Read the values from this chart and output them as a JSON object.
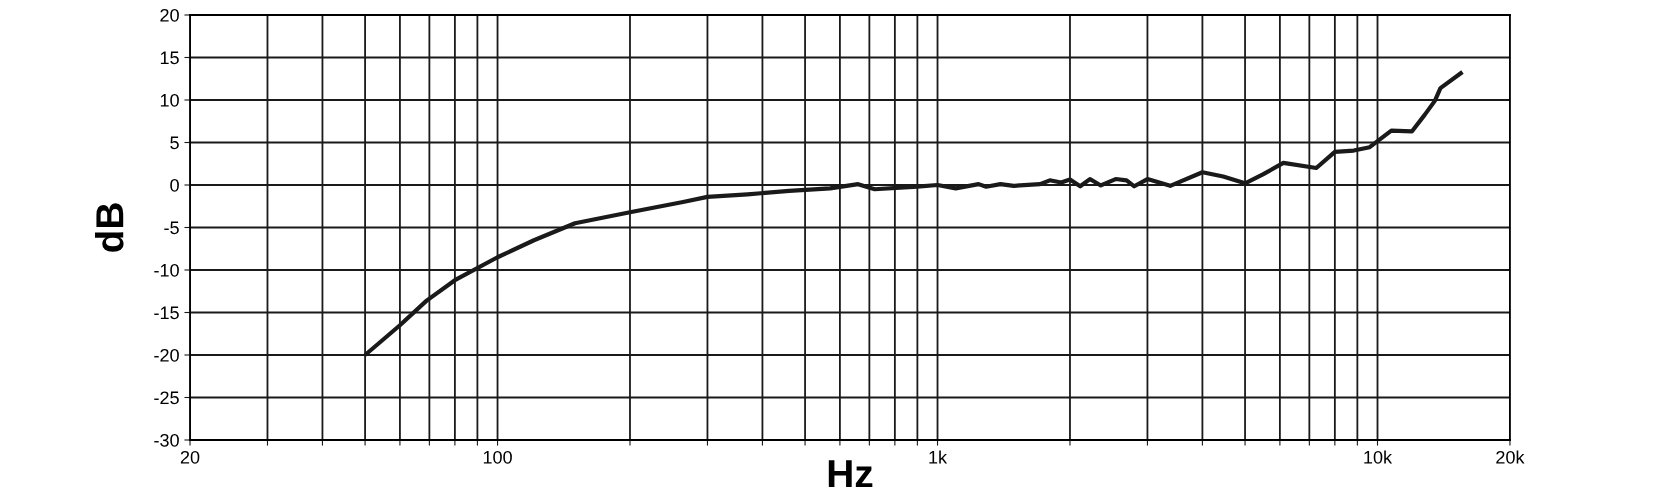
{
  "chart_data": {
    "type": "line",
    "xlabel": "Hz",
    "ylabel": "dB",
    "log": "x",
    "grid": true,
    "xlim": [
      20,
      20000
    ],
    "ylim": [
      -30,
      20
    ],
    "xticks": [
      20,
      {
        "value": 30,
        "label": null
      },
      {
        "value": 40,
        "label": null
      },
      {
        "value": 50,
        "label": null
      },
      {
        "value": 60,
        "label": null
      },
      {
        "value": 70,
        "label": null
      },
      {
        "value": 80,
        "label": null
      },
      {
        "value": 90,
        "label": null
      },
      100,
      {
        "value": 200,
        "label": null
      },
      {
        "value": 300,
        "label": null
      },
      {
        "value": 400,
        "label": null
      },
      {
        "value": 500,
        "label": null
      },
      {
        "value": 600,
        "label": null
      },
      {
        "value": 700,
        "label": null
      },
      {
        "value": 800,
        "label": null
      },
      {
        "value": 900,
        "label": null
      },
      {
        "value": 1000,
        "label": "1k"
      },
      {
        "value": 2000,
        "label": null
      },
      {
        "value": 3000,
        "label": null
      },
      {
        "value": 4000,
        "label": null
      },
      {
        "value": 5000,
        "label": null
      },
      {
        "value": 6000,
        "label": null
      },
      {
        "value": 7000,
        "label": null
      },
      {
        "value": 8000,
        "label": null
      },
      {
        "value": 9000,
        "label": null
      },
      {
        "value": 10000,
        "label": "10k"
      },
      {
        "value": 20000,
        "label": "20k"
      }
    ],
    "yticks": [
      -30,
      -25,
      -20,
      -15,
      -10,
      -5,
      0,
      5,
      10,
      15,
      20
    ],
    "series": [
      {
        "color": "#1a1a1a",
        "x": [
          50,
          60,
          69,
          80,
          100,
          121,
          150,
          200,
          264,
          300,
          370,
          460,
          570,
          660,
          720,
          900,
          1000,
          1100,
          1240,
          1290,
          1390,
          1490,
          1710,
          1800,
          1910,
          2000,
          2110,
          2220,
          2350,
          2540,
          2690,
          2800,
          3000,
          3380,
          4000,
          4460,
          5000,
          5490,
          6110,
          7260,
          8000,
          8830,
          9600,
          10750,
          11970,
          12800,
          13500,
          13900,
          15600
        ],
        "values": [
          -20,
          -16.5,
          -13.6,
          -11.2,
          -8.5,
          -6.5,
          -4.5,
          -3.2,
          -2,
          -1.4,
          -1.1,
          -0.7,
          -0.4,
          0.1,
          -0.5,
          -0.2,
          0,
          -0.4,
          0.1,
          -0.2,
          0.1,
          -0.1,
          0.1,
          0.55,
          0.3,
          0.65,
          -0.15,
          0.7,
          -0.05,
          0.7,
          0.55,
          -0.15,
          0.7,
          -0.1,
          1.5,
          1.0,
          0.2,
          1.25,
          2.6,
          2.0,
          3.9,
          4.05,
          4.45,
          6.4,
          6.3,
          8.25,
          9.9,
          11.4,
          13.3
        ]
      }
    ]
  }
}
